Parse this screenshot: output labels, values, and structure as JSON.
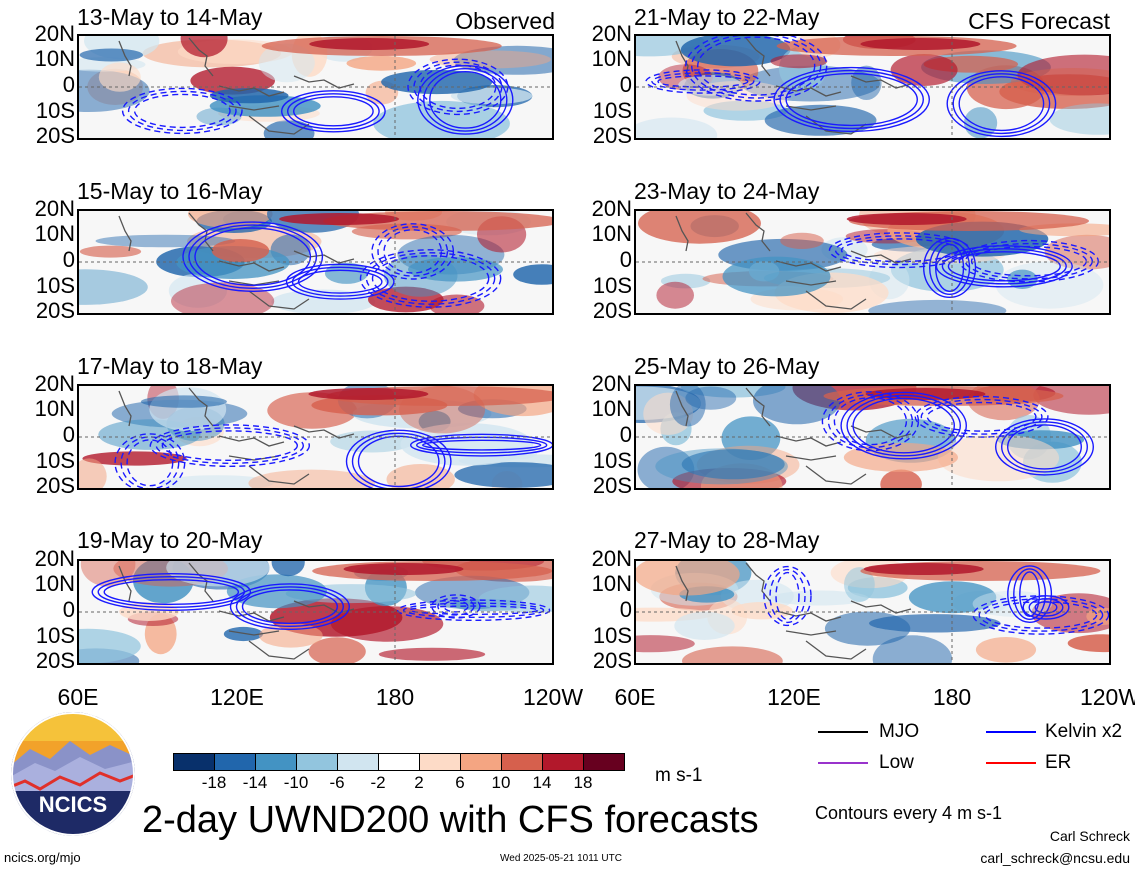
{
  "panels": [
    {
      "date": "13-May to 14-May",
      "tag": "Observed"
    },
    {
      "date": "21-May to 22-May",
      "tag": "CFS Forecast"
    },
    {
      "date": "15-May to 16-May",
      "tag": ""
    },
    {
      "date": "23-May to 24-May",
      "tag": ""
    },
    {
      "date": "17-May to 18-May",
      "tag": ""
    },
    {
      "date": "25-May to 26-May",
      "tag": ""
    },
    {
      "date": "19-May to 20-May",
      "tag": ""
    },
    {
      "date": "27-May to 28-May",
      "tag": ""
    }
  ],
  "chart_data": {
    "type": "heatmap",
    "title": "2-day UWND200 with CFS forecasts",
    "variable": "UWND200",
    "lat_ticks": [
      "20N",
      "10N",
      "0",
      "10S",
      "20S"
    ],
    "lon_ticks": [
      "60E",
      "120E",
      "180",
      "120W"
    ],
    "colorbar": {
      "labels": [
        "-18",
        "-14",
        "-10",
        "-6",
        "-2",
        "2",
        "6",
        "10",
        "14",
        "18"
      ],
      "colors": [
        "#08306b",
        "#2166ac",
        "#4393c3",
        "#92c5de",
        "#d1e5f0",
        "#ffffff",
        "#fddbc7",
        "#f4a582",
        "#d6604d",
        "#b2182b",
        "#67001f"
      ],
      "units": "m s-1"
    },
    "contour_note": "Contours every 4 m s-1",
    "legend": [
      {
        "name": "MJO",
        "color": "#000000"
      },
      {
        "name": "Kelvin x2",
        "color": "#0000ff"
      },
      {
        "name": "Low",
        "color": "#9933cc"
      },
      {
        "name": "ER",
        "color": "#ff0000"
      }
    ]
  },
  "footer": {
    "logo_text": "NCICS",
    "url": "ncics.org/mjo",
    "timestamp": "Wed 2025-05-21 1011 UTC",
    "author": "Carl Schreck",
    "email": "carl_schreck@ncsu.edu"
  }
}
